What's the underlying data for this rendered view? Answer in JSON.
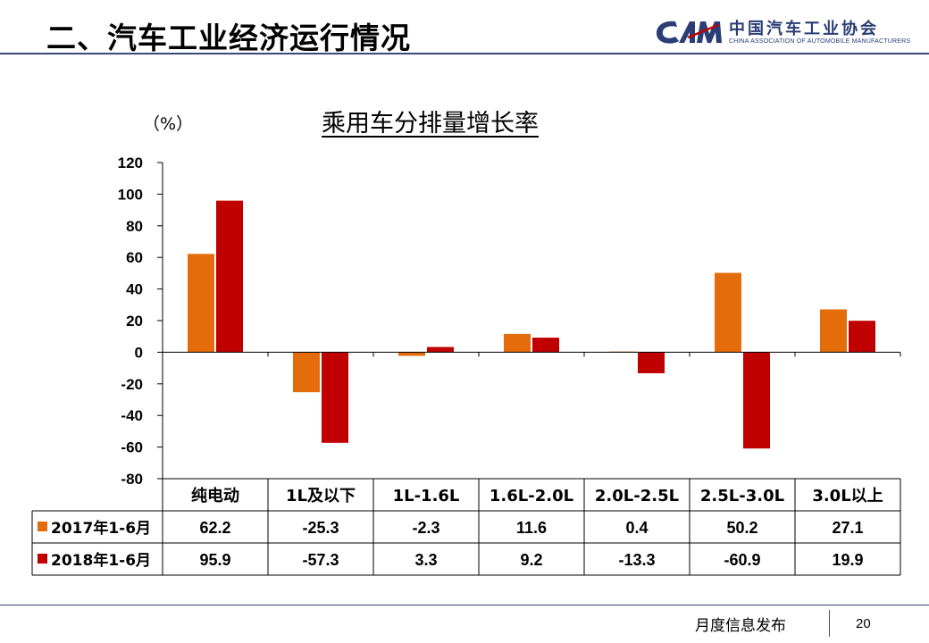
{
  "header": {
    "title": "二、汽车工业经济运行情况",
    "logo_cn": "中国汽车工业协会",
    "logo_en": "CHINA ASSOCIATION OF AUTOMOBILE MANUFACTURERS",
    "logo_mark_text": "CAM"
  },
  "footer": {
    "text": "月度信息发布",
    "page_number": "20"
  },
  "colors": {
    "series_2017": "#e46c0a",
    "series_2018": "#c00000",
    "header_rule": "#3a4a78",
    "logo": "#2b3d75"
  },
  "chart_data": {
    "type": "bar",
    "title": "乘用车分排量增长率",
    "ylabel": "（%）",
    "xlabel": "",
    "ylim": [
      -80,
      120
    ],
    "yticks": [
      120,
      100,
      80,
      60,
      40,
      20,
      0,
      -20,
      -40,
      -60,
      -80
    ],
    "ytick_labels": [
      "120",
      "100",
      "80",
      "60",
      "40",
      "20",
      "0",
      "-20",
      "-40",
      "-60",
      "-80"
    ],
    "grid": false,
    "legend": "in data table, left",
    "categories": [
      "纯电动",
      "1L及以下",
      "1L-1.6L",
      "1.6L-2.0L",
      "2.0L-2.5L",
      "2.5L-3.0L",
      "3.0L以上"
    ],
    "series": [
      {
        "name": "2017年1-6月",
        "values": [
          62.2,
          -25.3,
          -2.3,
          11.6,
          0.4,
          50.2,
          27.1
        ],
        "labels": [
          "62.2",
          "-25.3",
          "-2.3",
          "11.6",
          "0.4",
          "50.2",
          "27.1"
        ]
      },
      {
        "name": "2018年1-6月",
        "values": [
          95.9,
          -57.3,
          3.3,
          9.2,
          -13.3,
          -60.9,
          19.9
        ],
        "labels": [
          "95.9",
          "-57.3",
          "3.3",
          "9.2",
          "-13.3",
          "-60.9",
          "19.9"
        ]
      }
    ]
  }
}
